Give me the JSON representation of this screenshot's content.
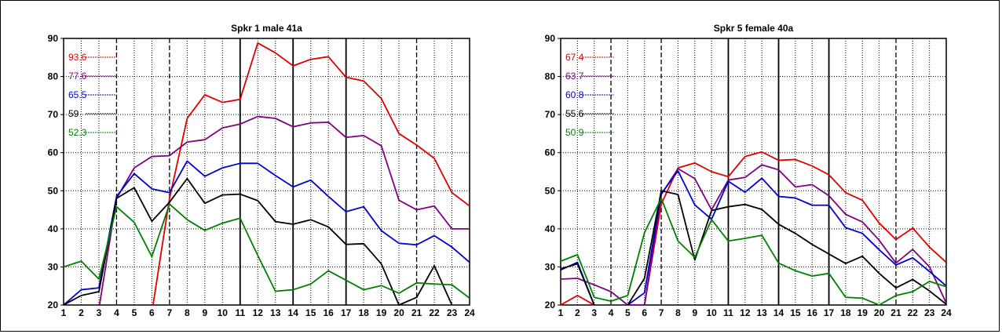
{
  "chart_data": [
    {
      "type": "line",
      "title": "Spkr 1 male 41a",
      "x": [
        1,
        2,
        3,
        4,
        5,
        6,
        7,
        8,
        9,
        10,
        11,
        12,
        13,
        14,
        15,
        16,
        17,
        18,
        19,
        20,
        21,
        22,
        23,
        24
      ],
      "ylim": [
        20,
        90
      ],
      "yticks": [
        20,
        30,
        40,
        50,
        60,
        70,
        80,
        90
      ],
      "xticks": [
        1,
        2,
        3,
        4,
        5,
        6,
        7,
        8,
        9,
        10,
        11,
        12,
        13,
        14,
        15,
        16,
        17,
        18,
        19,
        20,
        21,
        22,
        23,
        24
      ],
      "xlabel": "",
      "ylabel": "",
      "grid": true,
      "vertical_guides": {
        "dashed": [
          4,
          7,
          21
        ],
        "solid": [
          11,
          14,
          17
        ]
      },
      "series": [
        {
          "label": "93.6",
          "color": "#e00000",
          "values": [
            null,
            null,
            null,
            null,
            null,
            18,
            48,
            69,
            75.2,
            73.2,
            74,
            88.8,
            86.2,
            82.8,
            84.5,
            85.2,
            79.8,
            78.8,
            74.2,
            65,
            62,
            58.5,
            49.5,
            46
          ]
        },
        {
          "label": "77.6",
          "color": "#800080",
          "values": [
            null,
            null,
            19,
            48,
            56,
            59,
            59.2,
            62.8,
            63.4,
            66.5,
            67.5,
            69.5,
            69,
            66.8,
            67.8,
            68,
            64,
            64.5,
            61.8,
            47.5,
            45,
            46,
            40,
            40
          ]
        },
        {
          "label": "65.5",
          "color": "#0000d0",
          "values": [
            20,
            24,
            24.5,
            48.5,
            54.5,
            50.5,
            49.5,
            57.8,
            53.8,
            56,
            57.2,
            57.2,
            54,
            51,
            52.8,
            48.5,
            44.5,
            45.8,
            39.5,
            36.2,
            35.8,
            38.2,
            35.2,
            31.2
          ]
        },
        {
          "label": "59",
          "color": "#000000",
          "values": [
            20,
            22.5,
            23.5,
            48,
            50.8,
            42,
            47,
            53.2,
            46.7,
            48.9,
            49.1,
            47.4,
            41.9,
            41.2,
            42.4,
            40.5,
            35.9,
            36.1,
            30.8,
            20,
            22,
            30.3,
            20,
            null
          ]
        },
        {
          "label": "52.3",
          "color": "#008000",
          "values": [
            30,
            31.5,
            26.8,
            45.8,
            41.7,
            32.7,
            46.5,
            42.4,
            39.6,
            41.5,
            42.8,
            33,
            23.6,
            24,
            25.5,
            29,
            26.5,
            24,
            25.1,
            23.1,
            25.8,
            25.5,
            25.3,
            21.8
          ]
        }
      ]
    },
    {
      "type": "line",
      "title": "Spkr 5 female 40a",
      "x": [
        1,
        2,
        3,
        4,
        5,
        6,
        7,
        8,
        9,
        10,
        11,
        12,
        13,
        14,
        15,
        16,
        17,
        18,
        19,
        20,
        21,
        22,
        23,
        24
      ],
      "ylim": [
        20,
        90
      ],
      "yticks": [
        20,
        30,
        40,
        50,
        60,
        70,
        80,
        90
      ],
      "xticks": [
        1,
        2,
        3,
        4,
        5,
        6,
        7,
        8,
        9,
        10,
        11,
        12,
        13,
        14,
        15,
        16,
        17,
        18,
        19,
        20,
        21,
        22,
        23,
        24
      ],
      "xlabel": "",
      "ylabel": "",
      "grid": true,
      "vertical_guides": {
        "dashed": [
          4,
          7,
          21
        ],
        "solid": [
          11,
          14,
          17
        ]
      },
      "series": [
        {
          "label": "67.4",
          "color": "#e00000",
          "values": [
            20,
            22.5,
            20,
            null,
            null,
            20,
            46.5,
            56,
            57.3,
            55,
            53.7,
            59,
            60.2,
            58,
            58.2,
            56.5,
            54.2,
            49.5,
            47.5,
            41.5,
            37.2,
            40.2,
            35.2,
            31.2
          ]
        },
        {
          "label": "63.7",
          "color": "#800080",
          "values": [
            26.8,
            27,
            25.3,
            23.5,
            20,
            20,
            49,
            55.8,
            53.2,
            45,
            52.8,
            53.5,
            56.8,
            55.5,
            51,
            51.6,
            48.7,
            43.8,
            41.8,
            37,
            31,
            34.6,
            30,
            20.5
          ]
        },
        {
          "label": "60.8",
          "color": "#0000d0",
          "values": [
            29.2,
            31.2,
            20,
            null,
            20,
            23.2,
            49.2,
            55.2,
            46.3,
            42.5,
            52.5,
            49.6,
            53.3,
            48.5,
            48.1,
            46.2,
            46.2,
            40.3,
            38.8,
            34.5,
            30.5,
            32.4,
            28.8,
            25
          ]
        },
        {
          "label": "55.6",
          "color": "#000000",
          "values": [
            29.5,
            30.8,
            20,
            null,
            20,
            27,
            50,
            49,
            31.8,
            44.8,
            45.8,
            46.4,
            45.1,
            41.2,
            38.8,
            35.9,
            33.4,
            30.9,
            32.8,
            28.3,
            24.5,
            26.7,
            23.7,
            20.2
          ]
        },
        {
          "label": "50.9",
          "color": "#008000",
          "values": [
            31.5,
            33.2,
            22,
            21,
            22.5,
            39,
            48,
            36.8,
            32.5,
            42.4,
            36.8,
            37.5,
            38.3,
            31,
            29,
            27.6,
            28.3,
            22,
            21.8,
            20,
            22.5,
            23.5,
            26.2,
            24.8
          ]
        }
      ]
    }
  ]
}
